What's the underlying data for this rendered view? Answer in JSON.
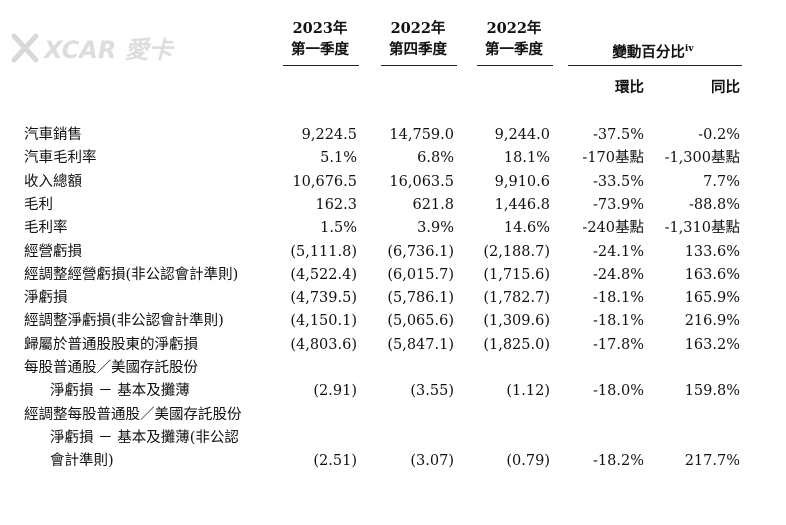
{
  "watermark": {
    "text": "XCAR 愛卡",
    "icon": "xcar-logo"
  },
  "headers": {
    "col1": {
      "year": "2023年",
      "quarter": "第一季度"
    },
    "col2": {
      "year": "2022年",
      "quarter": "第四季度"
    },
    "col3": {
      "year": "2022年",
      "quarter": "第一季度"
    },
    "change": {
      "title": "變動百分比",
      "note": "iv",
      "qoq": "環比",
      "yoy": "同比"
    }
  },
  "rows": [
    {
      "label": "汽車銷售",
      "q1_2023": "9,224.5",
      "q4_2022": "14,759.0",
      "q1_2022": "9,244.0",
      "qoq": "-37.5%",
      "yoy": "-0.2%"
    },
    {
      "label": "汽車毛利率",
      "q1_2023": "5.1%",
      "q4_2022": "6.8%",
      "q1_2022": "18.1%",
      "qoq": "-170基點",
      "yoy": "-1,300基點"
    },
    {
      "label": "收入總額",
      "q1_2023": "10,676.5",
      "q4_2022": "16,063.5",
      "q1_2022": "9,910.6",
      "qoq": "-33.5%",
      "yoy": "7.7%"
    },
    {
      "label": "毛利",
      "q1_2023": "162.3",
      "q4_2022": "621.8",
      "q1_2022": "1,446.8",
      "qoq": "-73.9%",
      "yoy": "-88.8%"
    },
    {
      "label": "毛利率",
      "q1_2023": "1.5%",
      "q4_2022": "3.9%",
      "q1_2022": "14.6%",
      "qoq": "-240基點",
      "yoy": "-1,310基點"
    },
    {
      "label": "經營虧損",
      "q1_2023": "(5,111.8)",
      "q4_2022": "(6,736.1)",
      "q1_2022": "(2,188.7)",
      "qoq": "-24.1%",
      "yoy": "133.6%"
    },
    {
      "label": "經調整經營虧損(非公認會計準則)",
      "q1_2023": "(4,522.4)",
      "q4_2022": "(6,015.7)",
      "q1_2022": "(1,715.6)",
      "qoq": "-24.8%",
      "yoy": "163.6%"
    },
    {
      "label": "淨虧損",
      "q1_2023": "(4,739.5)",
      "q4_2022": "(5,786.1)",
      "q1_2022": "(1,782.7)",
      "qoq": "-18.1%",
      "yoy": "165.9%"
    },
    {
      "label": "經調整淨虧損(非公認會計準則)",
      "q1_2023": "(4,150.1)",
      "q4_2022": "(5,065.6)",
      "q1_2022": "(1,309.6)",
      "qoq": "-18.1%",
      "yoy": "216.9%"
    },
    {
      "label": "歸屬於普通股股東的淨虧損",
      "q1_2023": "(4,803.6)",
      "q4_2022": "(5,847.1)",
      "q1_2022": "(1,825.0)",
      "qoq": "-17.8%",
      "yoy": "163.2%"
    },
    {
      "label": "每股普通股／美國存託股份",
      "q1_2023": "",
      "q4_2022": "",
      "q1_2022": "",
      "qoq": "",
      "yoy": ""
    },
    {
      "label": "淨虧損 － 基本及攤薄",
      "q1_2023": "(2.91)",
      "q4_2022": "(3.55)",
      "q1_2022": "(1.12)",
      "qoq": "-18.0%",
      "yoy": "159.8%",
      "indent": true
    },
    {
      "label": "經調整每股普通股／美國存託股份",
      "q1_2023": "",
      "q4_2022": "",
      "q1_2022": "",
      "qoq": "",
      "yoy": ""
    },
    {
      "label": "淨虧損 － 基本及攤薄(非公認",
      "q1_2023": "",
      "q4_2022": "",
      "q1_2022": "",
      "qoq": "",
      "yoy": "",
      "indent": true
    },
    {
      "label": "會計準則)",
      "q1_2023": "(2.51)",
      "q4_2022": "(3.07)",
      "q1_2022": "(0.79)",
      "qoq": "-18.2%",
      "yoy": "217.7%",
      "indent": true
    }
  ]
}
